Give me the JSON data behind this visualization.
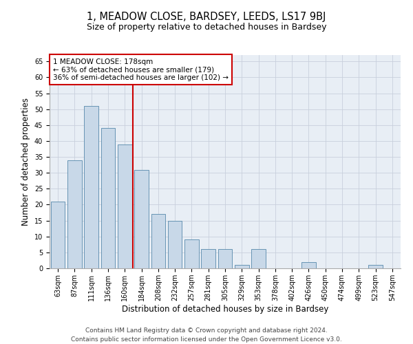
{
  "title": "1, MEADOW CLOSE, BARDSEY, LEEDS, LS17 9BJ",
  "subtitle": "Size of property relative to detached houses in Bardsey",
  "xlabel": "Distribution of detached houses by size in Bardsey",
  "ylabel": "Number of detached properties",
  "categories": [
    "63sqm",
    "87sqm",
    "111sqm",
    "136sqm",
    "160sqm",
    "184sqm",
    "208sqm",
    "232sqm",
    "257sqm",
    "281sqm",
    "305sqm",
    "329sqm",
    "353sqm",
    "378sqm",
    "402sqm",
    "426sqm",
    "450sqm",
    "474sqm",
    "499sqm",
    "523sqm",
    "547sqm"
  ],
  "values": [
    21,
    34,
    51,
    44,
    39,
    31,
    17,
    15,
    9,
    6,
    6,
    1,
    6,
    0,
    0,
    2,
    0,
    0,
    0,
    1,
    0
  ],
  "bar_color": "#c8d8e8",
  "bar_edge_color": "#5588aa",
  "vline_color": "#cc0000",
  "annotation_lines": [
    "1 MEADOW CLOSE: 178sqm",
    "← 63% of detached houses are smaller (179)",
    "36% of semi-detached houses are larger (102) →"
  ],
  "annotation_box_color": "#ffffff",
  "annotation_box_edge": "#cc0000",
  "ylim": [
    0,
    67
  ],
  "yticks": [
    0,
    5,
    10,
    15,
    20,
    25,
    30,
    35,
    40,
    45,
    50,
    55,
    60,
    65
  ],
  "grid_color": "#c8d0dc",
  "bg_color": "#e8eef5",
  "footer_line1": "Contains HM Land Registry data © Crown copyright and database right 2024.",
  "footer_line2": "Contains public sector information licensed under the Open Government Licence v3.0.",
  "title_fontsize": 10.5,
  "subtitle_fontsize": 9,
  "axis_label_fontsize": 8.5,
  "tick_fontsize": 7,
  "annotation_fontsize": 7.5,
  "footer_fontsize": 6.5
}
